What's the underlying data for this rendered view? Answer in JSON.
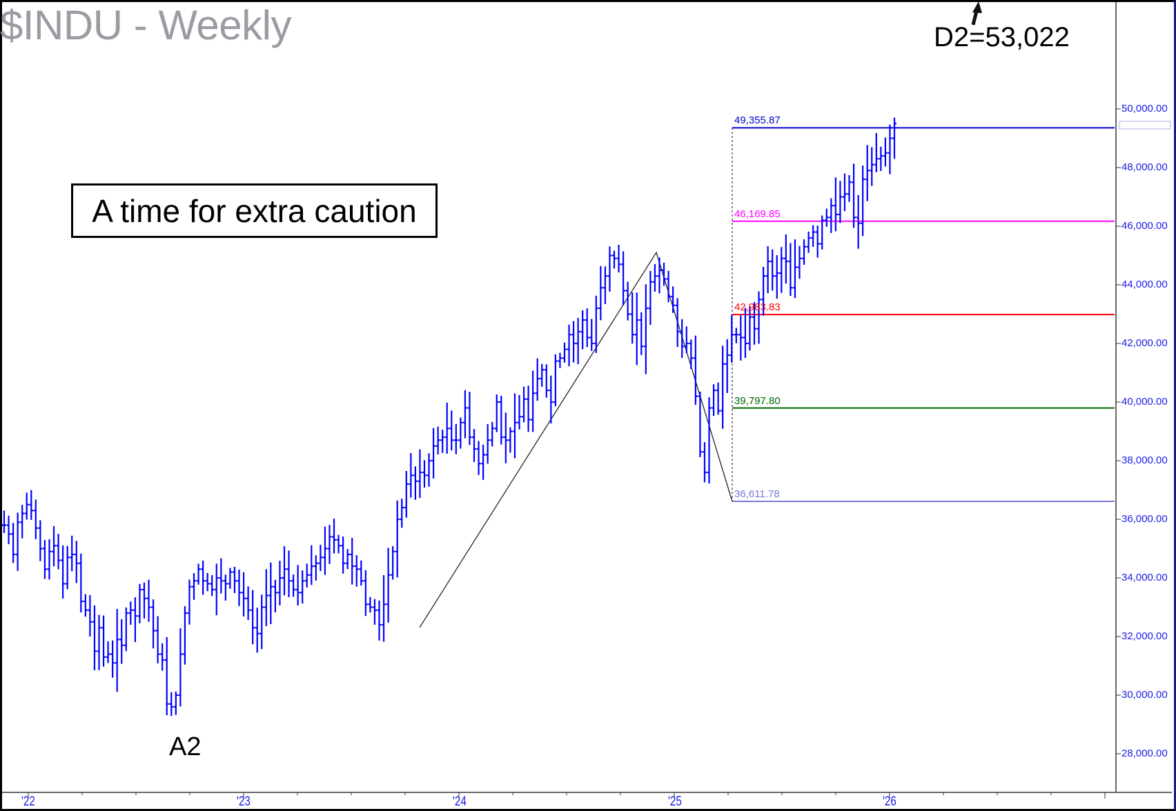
{
  "header": {
    "title": "$INDU - Weekly"
  },
  "annotations": {
    "caption": "A time for extra caution",
    "target_label": "D2=53,022",
    "pivot_label": "A2"
  },
  "levels": [
    {
      "label": "49,355.87",
      "value": 49355.87,
      "color": "#0000cc"
    },
    {
      "label": "46,169.85",
      "value": 46169.85,
      "color": "#ff00ff"
    },
    {
      "label": "42,983.83",
      "value": 42983.83,
      "color": "#ff0000"
    },
    {
      "label": "39,797.80",
      "value": 39797.8,
      "color": "#006600"
    },
    {
      "label": "36,611.78",
      "value": 36611.78,
      "color": "#7777dd"
    }
  ],
  "colors": {
    "bars": "#0000ff",
    "axis_text": "#1a1ae6",
    "title": "#9b9ba3"
  },
  "chart_data": {
    "type": "ohlc",
    "title": "$INDU - Weekly",
    "xlabel": "",
    "ylabel": "",
    "x_tick_labels": [
      "'22",
      "'23",
      "'24",
      "'25",
      "'26"
    ],
    "y_tick_labels": [
      "50,000.00",
      "48,000.00",
      "46,000.00",
      "44,000.00",
      "42,000.00",
      "40,000.00",
      "38,000.00",
      "36,000.00",
      "34,000.00",
      "32,000.00",
      "30,000.00",
      "28,000.00"
    ],
    "y_ticks": [
      50000,
      48000,
      46000,
      44000,
      42000,
      40000,
      38000,
      36000,
      34000,
      32000,
      30000,
      28000
    ],
    "ylim": [
      27300,
      52800
    ],
    "grid": false,
    "horizontal_levels": [
      49355.87,
      46169.85,
      42983.83,
      39797.8,
      36611.78
    ],
    "abc_lines": [
      {
        "from": {
          "date": "2023-10",
          "price": 32330
        },
        "to": {
          "date": "2024-12",
          "price": 45070
        }
      },
      {
        "from": {
          "date": "2024-12",
          "price": 45070
        },
        "to": {
          "date": "2025-04",
          "price": 36611.78
        }
      }
    ],
    "annotations": [
      "A time for extra caution",
      "D2=53,022",
      "A2"
    ],
    "weekly_close_approx": [
      35800,
      35500,
      34800,
      35900,
      36200,
      36500,
      36300,
      35700,
      35000,
      34300,
      34900,
      35100,
      34600,
      33800,
      34700,
      34800,
      34500,
      33200,
      32900,
      32500,
      31500,
      32300,
      31300,
      31400,
      31100,
      31900,
      31700,
      32800,
      32900,
      32700,
      33600,
      33300,
      33000,
      32200,
      31400,
      31200,
      29700,
      29600,
      30000,
      31400,
      32800,
      33700,
      33900,
      34300,
      33900,
      33800,
      33600,
      34000,
      33900,
      33800,
      34200,
      33900,
      33500,
      33300,
      32900,
      32300,
      32100,
      33000,
      33400,
      33700,
      33500,
      34000,
      34300,
      33900,
      33600,
      33500,
      33900,
      34100,
      34400,
      34500,
      34700,
      35000,
      35400,
      35300,
      35100,
      34500,
      34800,
      34400,
      34300,
      33900,
      33100,
      33000,
      32900,
      32400,
      33100,
      34100,
      34900,
      36000,
      36400,
      37200,
      37500,
      37300,
      37600,
      37500,
      38000,
      38500,
      38700,
      38800,
      39100,
      38700,
      38700,
      39300,
      39800,
      38800,
      38400,
      37900,
      38200,
      38700,
      39100,
      40000,
      38800,
      38700,
      39000,
      39300,
      39500,
      40100,
      39400,
      40300,
      40800,
      41100,
      40400,
      40000,
      41400,
      41500,
      41800,
      42300,
      42000,
      42400,
      42800,
      42200,
      42000,
      43200,
      43900,
      44300,
      45000,
      44900,
      44700,
      43800,
      43000,
      42300,
      42800,
      41900,
      43200,
      44100,
      44300,
      44500,
      44200,
      43600,
      43300,
      42400,
      41900,
      42000,
      41500,
      40200,
      38300,
      37600,
      39800,
      40400,
      39700,
      41300,
      41600,
      42300,
      42300,
      42200,
      42000,
      42900,
      42500,
      43500,
      44300,
      44800,
      44300,
      44400,
      44900,
      44800,
      43900,
      44600,
      44900,
      45300,
      45600,
      45800,
      45400,
      46200,
      46300,
      46700,
      46400,
      47000,
      47100,
      47500,
      46300,
      46100,
      47600,
      47900,
      48100,
      48300,
      48400,
      48500,
      49000,
      49500
    ]
  }
}
